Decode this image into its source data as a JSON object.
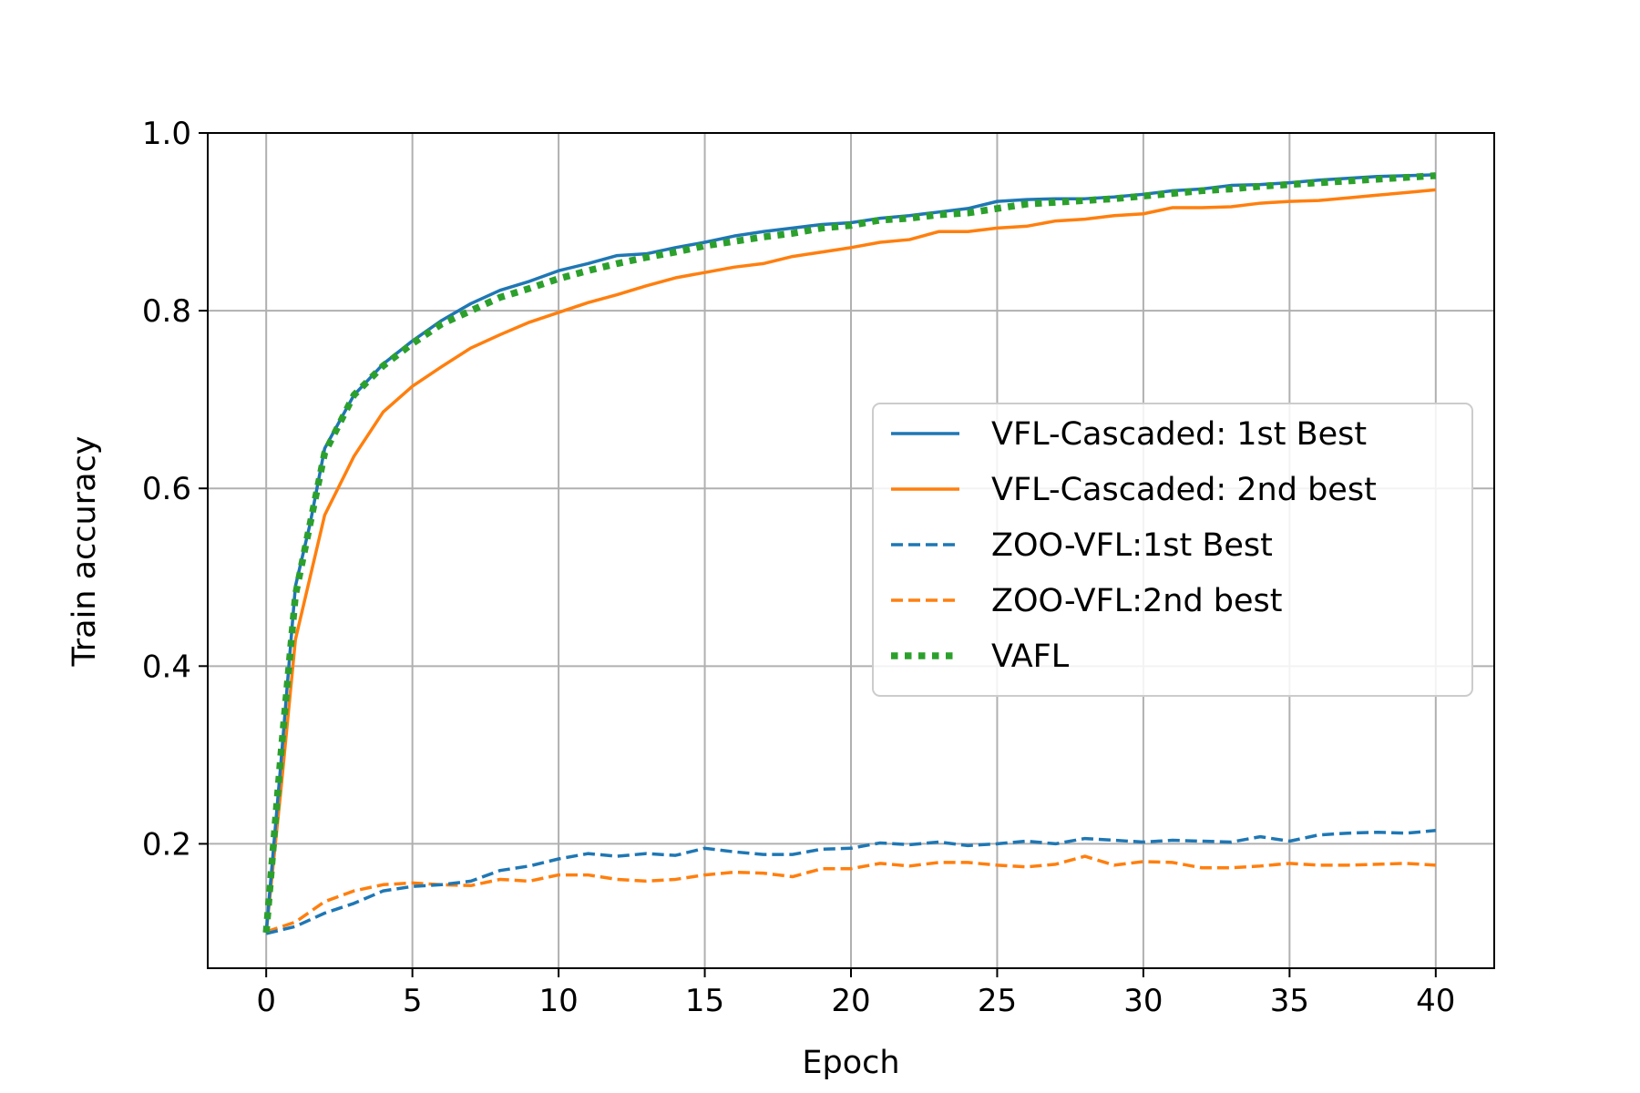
{
  "chart_data": {
    "type": "line",
    "title": "",
    "xlabel": "Epoch",
    "ylabel": "Train accuracy",
    "xlim": [
      -2,
      42
    ],
    "ylim": [
      0.06,
      1.0
    ],
    "xticks": [
      0,
      5,
      10,
      15,
      20,
      25,
      30,
      35,
      40
    ],
    "xtick_labels": [
      "0",
      "5",
      "10",
      "15",
      "20",
      "25",
      "30",
      "35",
      "40"
    ],
    "yticks": [
      0.2,
      0.4,
      0.6,
      0.8,
      1.0
    ],
    "ytick_labels": [
      "0.2",
      "0.4",
      "0.6",
      "0.8",
      "1.0"
    ],
    "grid": true,
    "legend_position": "center-right",
    "x": [
      0,
      1,
      2,
      3,
      4,
      5,
      6,
      7,
      8,
      9,
      10,
      11,
      12,
      13,
      14,
      15,
      16,
      17,
      18,
      19,
      20,
      21,
      22,
      23,
      24,
      25,
      26,
      27,
      28,
      29,
      30,
      31,
      32,
      33,
      34,
      35,
      36,
      37,
      38,
      39,
      40
    ],
    "series": [
      {
        "name": "VFL-Cascaded: 1st Best",
        "color": "#1f77b4",
        "style": "solid",
        "x": [
          0,
          0.5,
          1,
          1.5,
          2,
          3,
          4,
          5,
          6,
          7,
          8,
          9,
          10,
          11,
          12,
          13,
          14,
          15,
          16,
          17,
          18,
          19,
          20,
          21,
          22,
          23,
          24,
          25,
          26,
          27,
          28,
          29,
          30,
          31,
          32,
          33,
          34,
          35,
          36,
          37,
          38,
          39,
          40
        ],
        "values": [
          0.1,
          0.29,
          0.49,
          0.56,
          0.645,
          0.705,
          0.74,
          0.766,
          0.789,
          0.808,
          0.823,
          0.833,
          0.845,
          0.853,
          0.862,
          0.864,
          0.871,
          0.877,
          0.884,
          0.889,
          0.893,
          0.897,
          0.899,
          0.904,
          0.907,
          0.911,
          0.915,
          0.923,
          0.925,
          0.926,
          0.926,
          0.928,
          0.931,
          0.935,
          0.937,
          0.941,
          0.942,
          0.944,
          0.947,
          0.949,
          0.951,
          0.952,
          0.953
        ]
      },
      {
        "name": "VFL-Cascaded: 2nd best",
        "color": "#ff7f0e",
        "style": "solid",
        "x": [
          0,
          0.5,
          1,
          1.5,
          2,
          3,
          4,
          5,
          6,
          7,
          8,
          9,
          10,
          11,
          12,
          13,
          14,
          15,
          16,
          17,
          18,
          19,
          20,
          21,
          22,
          23,
          24,
          25,
          26,
          27,
          28,
          29,
          30,
          31,
          32,
          33,
          34,
          35,
          36,
          37,
          38,
          39,
          40
        ],
        "values": [
          0.1,
          0.26,
          0.43,
          0.5,
          0.57,
          0.636,
          0.686,
          0.715,
          0.737,
          0.758,
          0.773,
          0.787,
          0.798,
          0.809,
          0.818,
          0.828,
          0.837,
          0.843,
          0.849,
          0.853,
          0.861,
          0.866,
          0.871,
          0.877,
          0.88,
          0.889,
          0.889,
          0.893,
          0.895,
          0.901,
          0.903,
          0.907,
          0.909,
          0.916,
          0.916,
          0.917,
          0.921,
          0.923,
          0.924,
          0.927,
          0.93,
          0.933,
          0.936
        ]
      },
      {
        "name": "ZOO-VFL:1st Best",
        "color": "#1f77b4",
        "style": "dashed",
        "values": [
          0.099,
          0.107,
          0.122,
          0.133,
          0.147,
          0.152,
          0.154,
          0.158,
          0.17,
          0.175,
          0.183,
          0.189,
          0.186,
          0.189,
          0.187,
          0.195,
          0.191,
          0.188,
          0.188,
          0.194,
          0.195,
          0.201,
          0.199,
          0.202,
          0.198,
          0.2,
          0.203,
          0.2,
          0.206,
          0.204,
          0.202,
          0.204,
          0.203,
          0.202,
          0.208,
          0.203,
          0.21,
          0.212,
          0.213,
          0.212,
          0.215
        ]
      },
      {
        "name": "ZOO-VFL:2nd best",
        "color": "#ff7f0e",
        "style": "dashed",
        "values": [
          0.101,
          0.112,
          0.135,
          0.147,
          0.154,
          0.156,
          0.154,
          0.153,
          0.16,
          0.158,
          0.165,
          0.165,
          0.16,
          0.158,
          0.16,
          0.165,
          0.168,
          0.167,
          0.163,
          0.172,
          0.172,
          0.178,
          0.175,
          0.179,
          0.179,
          0.176,
          0.174,
          0.177,
          0.186,
          0.176,
          0.18,
          0.179,
          0.173,
          0.173,
          0.175,
          0.178,
          0.176,
          0.176,
          0.177,
          0.178,
          0.176
        ]
      },
      {
        "name": "VAFL",
        "color": "#2ca02c",
        "style": "dotted",
        "x": [
          0,
          0.5,
          1,
          1.5,
          2,
          3,
          4,
          5,
          6,
          7,
          8,
          9,
          10,
          11,
          12,
          13,
          14,
          15,
          16,
          17,
          18,
          19,
          20,
          21,
          22,
          23,
          24,
          25,
          26,
          27,
          28,
          29,
          30,
          31,
          32,
          33,
          34,
          35,
          36,
          37,
          38,
          39,
          40
        ],
        "values": [
          0.1,
          0.3,
          0.48,
          0.56,
          0.64,
          0.705,
          0.738,
          0.763,
          0.785,
          0.8,
          0.815,
          0.825,
          0.836,
          0.845,
          0.853,
          0.86,
          0.866,
          0.873,
          0.878,
          0.883,
          0.887,
          0.893,
          0.896,
          0.902,
          0.904,
          0.908,
          0.91,
          0.915,
          0.92,
          0.922,
          0.924,
          0.926,
          0.929,
          0.932,
          0.935,
          0.937,
          0.94,
          0.942,
          0.944,
          0.946,
          0.948,
          0.95,
          0.952
        ]
      }
    ]
  }
}
